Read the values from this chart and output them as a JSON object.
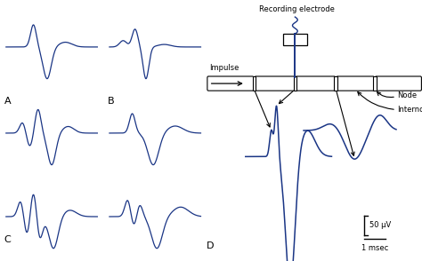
{
  "bg_color": "#ffffff",
  "line_color": "#1a3585",
  "text_color": "#000000",
  "fig_width": 4.74,
  "fig_height": 2.94,
  "dpi": 100,
  "recording_electrode_label": "Recording electrode",
  "impulse_label": "Impulse",
  "node_label": "Node",
  "internode_label": "Internode",
  "scale_uv": "50 μV",
  "scale_ms": "1 msec"
}
